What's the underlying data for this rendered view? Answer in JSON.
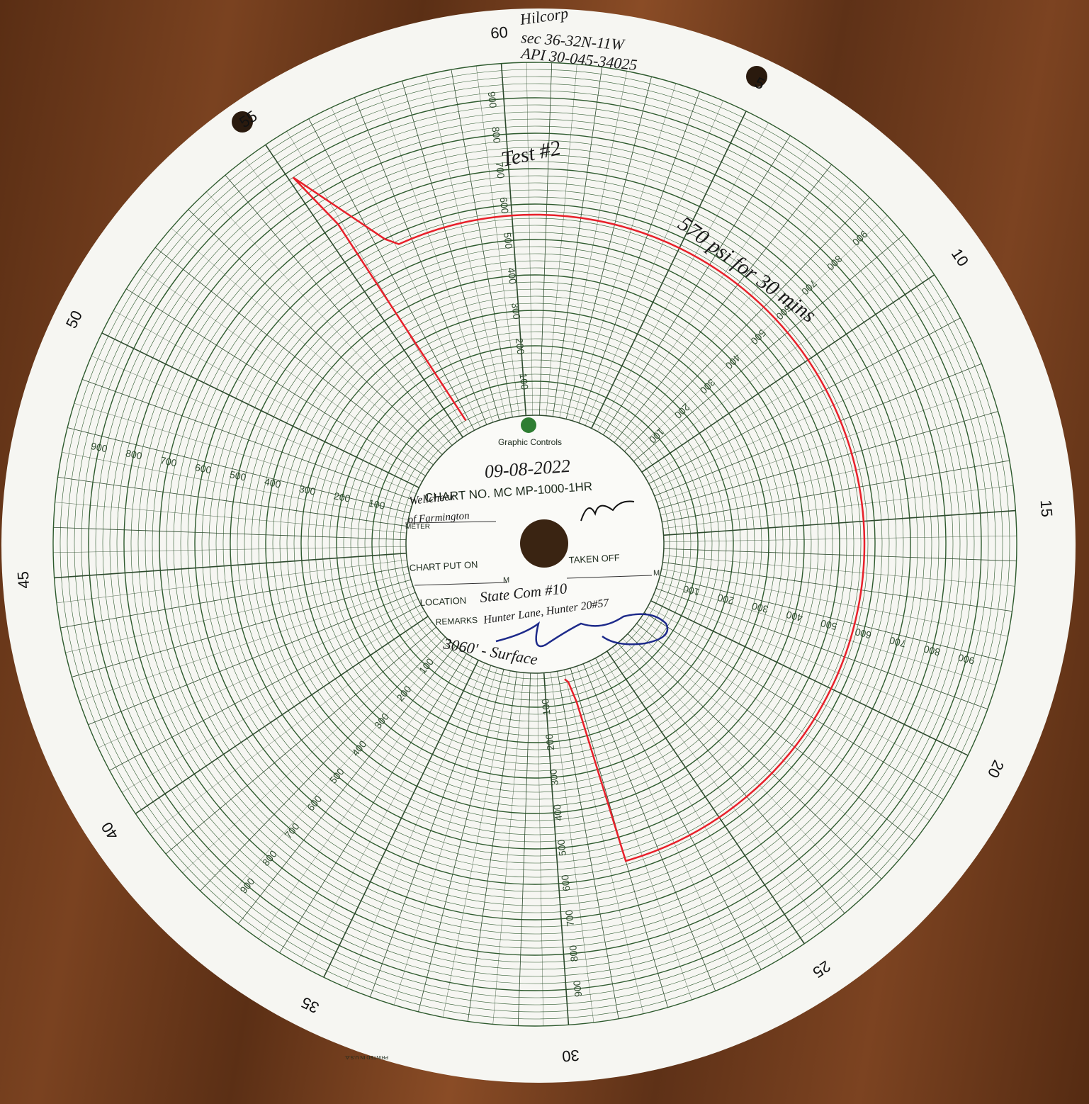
{
  "header": {
    "company": "Hilcorp",
    "section": "sec 36-32N-11W",
    "api": "API 30-045-34025"
  },
  "notes": {
    "test": "Test #2",
    "result": "570 psi for 30 mins"
  },
  "scale": {
    "minute_labels": [
      5,
      10,
      15,
      20,
      25,
      30,
      35,
      40,
      45,
      50,
      55,
      60
    ],
    "pressure_labels": [
      100,
      200,
      300,
      400,
      500,
      600,
      700,
      800,
      900
    ]
  },
  "center": {
    "brand": "Graphic Controls",
    "date": "09-08-2022",
    "chart_no": "CHART NO. MC MP-1000-1HR",
    "meter_value_1": "Wellcheck",
    "meter_value_2": "of Farmington",
    "meter": "METER",
    "chart_put_on": "CHART PUT ON",
    "put_on_unit": "M",
    "taken_off": "TAKEN OFF",
    "taken_off_unit": "M",
    "location": "LOCATION",
    "location_value": "State Com #10",
    "remarks": "REMARKS",
    "remarks_value": "Hunter Lane, Hunter 20#57",
    "depth": "3060' - Surface"
  },
  "footer": {
    "printed": "PRINTED IN U.S.A."
  },
  "trace": {
    "minutes": [
      55.8,
      55.4,
      55.1,
      56.3,
      56.6,
      0,
      10,
      20,
      28,
      28.2,
      28.4,
      28.6
    ],
    "pressure": [
      40,
      700,
      880,
      600,
      570,
      570,
      570,
      570,
      570,
      100,
      40,
      30
    ]
  }
}
